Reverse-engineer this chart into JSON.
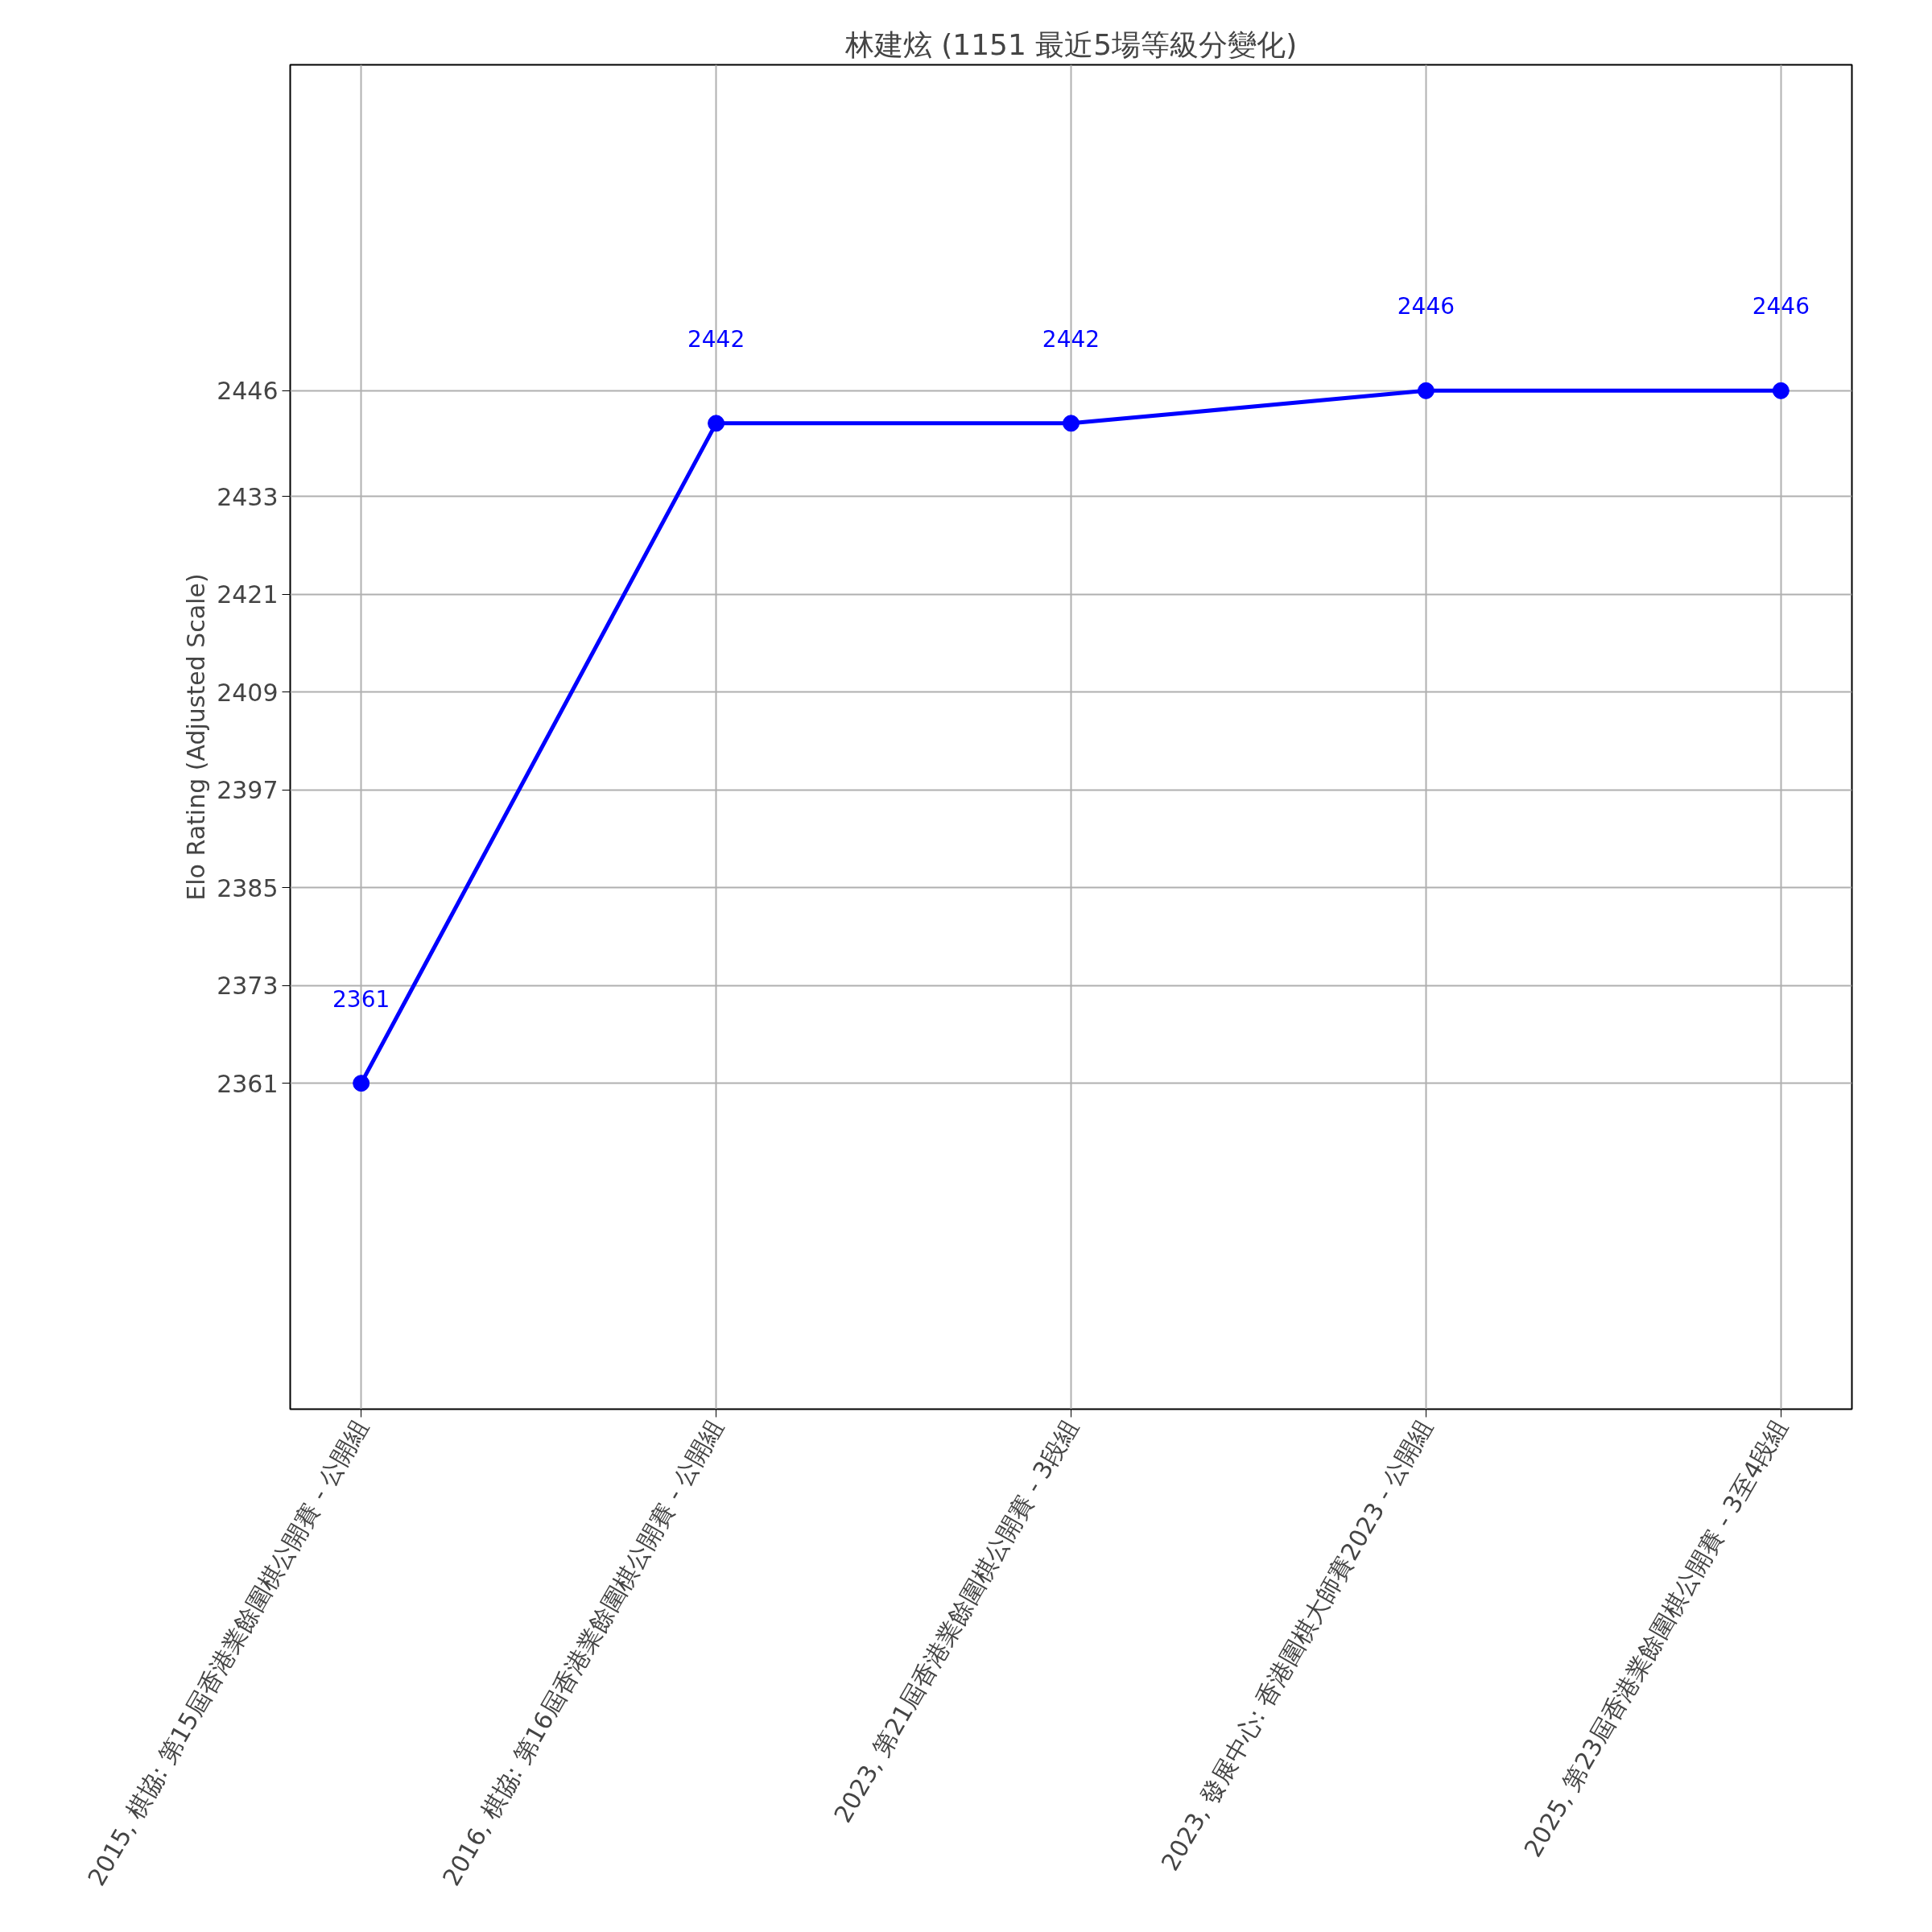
{
  "chart_data": {
    "type": "line",
    "title": "林建炫 (1151 最近5場等級分變化)",
    "ylabel": "Elo Rating (Adjusted Scale)",
    "categories": [
      "2015, 棋協: 第15屆香港業餘圍棋公開賽 - 公開組",
      "2016, 棋協: 第16屆香港業餘圍棋公開賽 - 公開組",
      "2023, 第21屆香港業餘圍棋公開賽 - 3段組",
      "2023, 發展中心: 香港圍棋大師賽2023 - 公開組",
      "2025, 第23屆香港業餘圍棋公開賽 - 3至4段組"
    ],
    "series": [
      {
        "color": "#0000ff",
        "values": [
          2361,
          2442,
          2442,
          2446,
          2446
        ]
      }
    ],
    "ylim": [
      2321,
      2486
    ],
    "yticks": [
      2361,
      2373,
      2385,
      2397,
      2409,
      2421,
      2433,
      2446
    ],
    "grid": true,
    "marker": "circle",
    "line_style": "solid",
    "data_labels": true
  }
}
